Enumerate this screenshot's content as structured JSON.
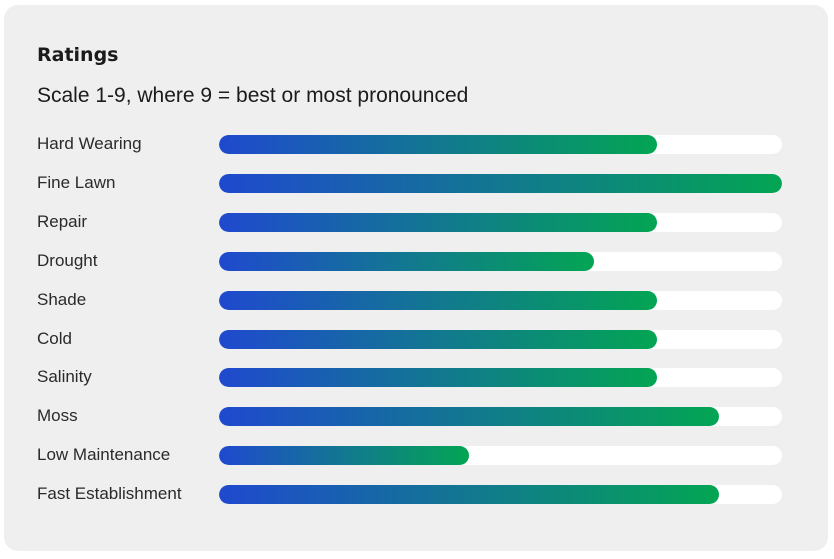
{
  "ratings": {
    "title": "Ratings",
    "subtitle": "Scale 1-9, where 9 = best or most pronounced",
    "scale_max": 9,
    "colors": {
      "bar_start": "#1f49cf",
      "bar_end": "#03a553",
      "track": "#ffffff",
      "card_background": "#efefef"
    },
    "items": [
      {
        "label": "Hard Wearing",
        "value": 7
      },
      {
        "label": "Fine Lawn",
        "value": 9
      },
      {
        "label": "Repair",
        "value": 7
      },
      {
        "label": "Drought",
        "value": 6
      },
      {
        "label": "Shade",
        "value": 7
      },
      {
        "label": "Cold",
        "value": 7
      },
      {
        "label": "Salinity",
        "value": 7
      },
      {
        "label": "Moss",
        "value": 8
      },
      {
        "label": "Low Maintenance",
        "value": 4
      },
      {
        "label": "Fast Establishment",
        "value": 8
      }
    ]
  }
}
